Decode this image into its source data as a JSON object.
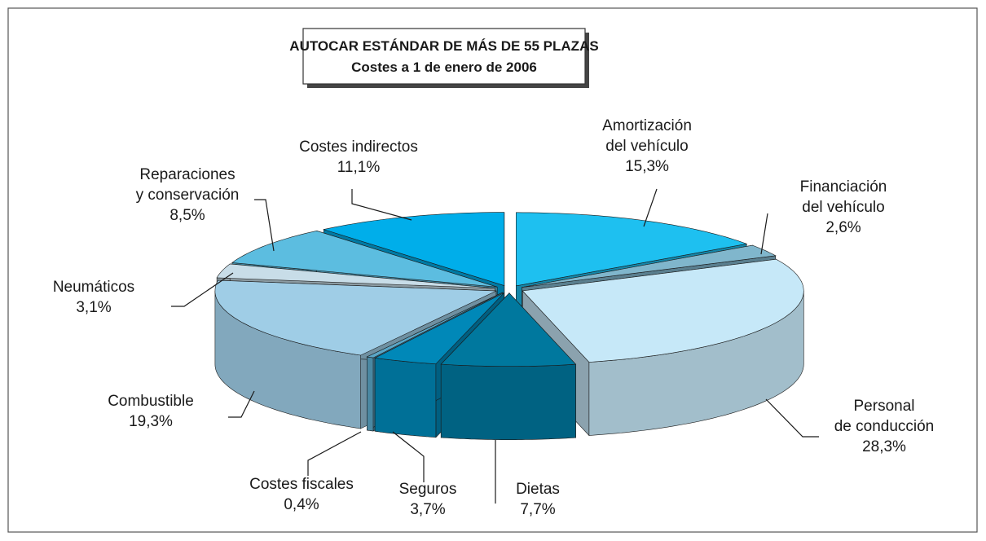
{
  "chart_data": {
    "type": "pie3d",
    "title": "AUTOCAR ESTÁNDAR DE MÁS DE 55 PLAZAS",
    "subtitle": "Costes a 1 de enero de 2006",
    "categories": [
      "Amortización del vehículo",
      "Financiación del vehículo",
      "Personal de conducción",
      "Dietas",
      "Seguros",
      "Costes fiscales",
      "Combustible",
      "Neumáticos",
      "Reparaciones y conservación",
      "Costes indirectos"
    ],
    "values": [
      15.3,
      2.6,
      28.3,
      7.7,
      3.7,
      0.4,
      19.3,
      3.1,
      8.5,
      11.1
    ],
    "value_labels": [
      "15,3%",
      "2,6%",
      "28,3%",
      "7,7%",
      "3,7%",
      "0,4%",
      "19,3%",
      "3,1%",
      "8,5%",
      "11,1%"
    ],
    "colors": [
      "#1ec0f0",
      "#80b6cc",
      "#c6e8f8",
      "#00789e",
      "#0088b8",
      "#5aa6c6",
      "#9fcde6",
      "#c8dde8",
      "#5cbde0",
      "#00aeea"
    ]
  }
}
